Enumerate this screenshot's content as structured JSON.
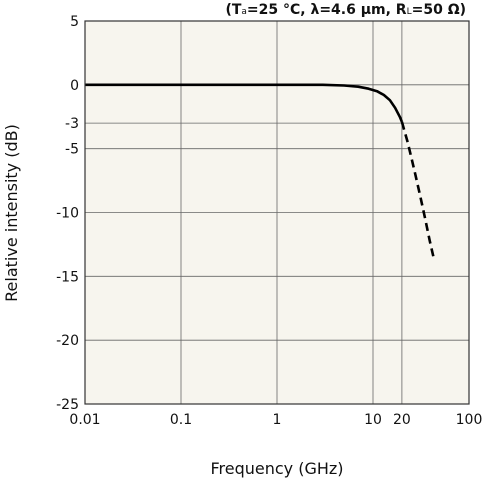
{
  "chart_data": {
    "type": "line",
    "title": "",
    "conditions": {
      "prefix": "(T",
      "sub1": "a",
      "mid": "=25 °C, λ=4.6 µm, R",
      "sub2": "L",
      "suffix": "=50 Ω)"
    },
    "xlabel": "Frequency (GHz)",
    "ylabel": "Relative intensity (dB)",
    "x_scale": "log",
    "xlim": [
      0.01,
      100
    ],
    "ylim": [
      -25,
      5
    ],
    "x_ticks": [
      {
        "value": 0.01,
        "label": "0.01"
      },
      {
        "value": 0.1,
        "label": "0.1"
      },
      {
        "value": 1,
        "label": "1"
      },
      {
        "value": 10,
        "label": "10"
      },
      {
        "value": 20,
        "label": "20"
      },
      {
        "value": 100,
        "label": "100"
      }
    ],
    "y_ticks": [
      {
        "value": 5,
        "label": "5"
      },
      {
        "value": 0,
        "label": "0"
      },
      {
        "value": -3,
        "label": "-3"
      },
      {
        "value": -5,
        "label": "-5"
      },
      {
        "value": -10,
        "label": "-10"
      },
      {
        "value": -15,
        "label": "-15"
      },
      {
        "value": -20,
        "label": "-20"
      },
      {
        "value": -25,
        "label": "-25"
      }
    ],
    "grid": true,
    "background_color": "#f7f5ee",
    "series": [
      {
        "style": "solid",
        "color": "#000000",
        "x": [
          0.01,
          0.1,
          1,
          3,
          5,
          7,
          9,
          11,
          13,
          15,
          17,
          19,
          20
        ],
        "y": [
          0,
          0,
          0,
          0,
          -0.05,
          -0.15,
          -0.3,
          -0.5,
          -0.8,
          -1.2,
          -1.8,
          -2.5,
          -2.9
        ]
      },
      {
        "style": "dashed",
        "color": "#000000",
        "x": [
          20,
          23,
          27,
          31,
          35,
          39,
          43
        ],
        "y": [
          -2.9,
          -4.5,
          -6.7,
          -8.7,
          -10.5,
          -12.2,
          -13.6
        ]
      }
    ]
  }
}
